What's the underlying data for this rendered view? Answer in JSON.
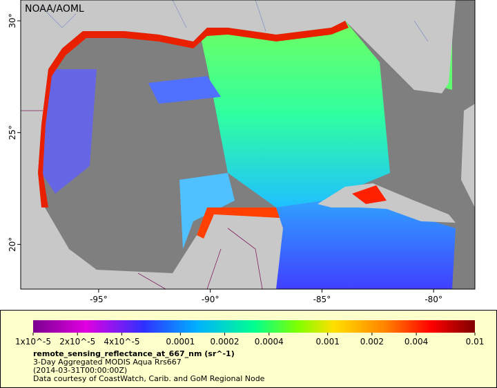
{
  "map": {
    "credit": "NOAA/AOML",
    "lonlim": [
      -98.49,
      -78.15
    ],
    "latlim": [
      18.0,
      30.93
    ],
    "lonticks": [
      {
        "value": -95,
        "label": "-95°"
      },
      {
        "value": -90,
        "label": "-90°"
      },
      {
        "value": -85,
        "label": "-85°"
      },
      {
        "value": -80,
        "label": "-80°"
      }
    ],
    "latticks": [
      {
        "value": 20,
        "label": "20°"
      },
      {
        "value": 25,
        "label": "25°"
      },
      {
        "value": 30,
        "label": "30°"
      }
    ]
  },
  "colorbar": {
    "scale": "log",
    "lim": [
      1e-05,
      0.01
    ],
    "ticks": [
      {
        "value": 1e-05,
        "label": "1x10^-5"
      },
      {
        "value": 2e-05,
        "label": "2x10^-5"
      },
      {
        "value": 4e-05,
        "label": "4x10^-5"
      },
      0.0001,
      0.0002,
      0.0004,
      0.001,
      0.002,
      0.004,
      0.01
    ],
    "title": "remote_sensing_reflectance_at_667_nm (sr^-1)",
    "lines": [
      "3-Day Aggregated MODIS Aqua Rrs667",
      "(2014-03-31T00:00:00Z)",
      "Data courtesy of CoastWatch, Carib. and GoM Regional Node"
    ]
  }
}
